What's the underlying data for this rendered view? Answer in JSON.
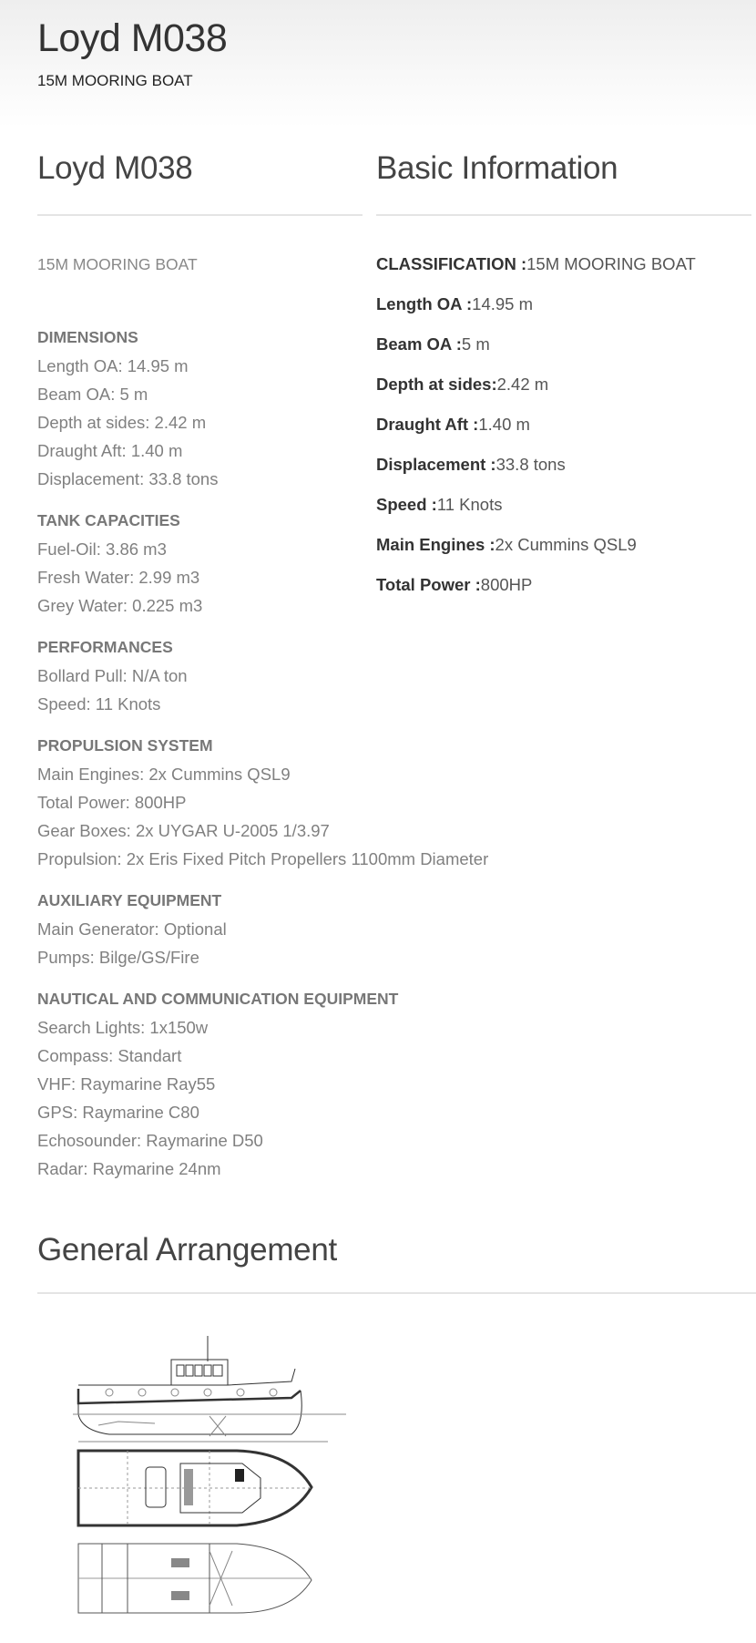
{
  "header": {
    "title": "Loyd M038",
    "subtitle": "15M MOORING BOAT"
  },
  "left": {
    "heading": "Loyd M038",
    "lead": "15M MOORING BOAT",
    "groups": [
      {
        "title": "DIMENSIONS",
        "items": [
          "Length OA: 14.95 m",
          "Beam OA: 5 m",
          "Depth at sides: 2.42 m",
          "Draught Aft: 1.40 m",
          "Displacement: 33.8 tons"
        ]
      },
      {
        "title": "TANK CAPACITIES",
        "items": [
          "Fuel-Oil: 3.86 m3",
          "Fresh Water: 2.99 m3",
          "Grey Water: 0.225 m3"
        ]
      },
      {
        "title": "PERFORMANCES",
        "items": [
          "Bollard Pull: N/A ton",
          "Speed: 11 Knots"
        ]
      },
      {
        "title": "PROPULSION SYSTEM",
        "items": [
          "Main Engines: 2x Cummins QSL9",
          "Total Power: 800HP",
          "Gear Boxes: 2x UYGAR U-2005 1/3.97",
          "Propulsion: 2x Eris Fixed Pitch Propellers 1100mm Diameter"
        ]
      },
      {
        "title": "AUXILIARY EQUIPMENT",
        "items": [
          "Main Generator: Optional",
          "Pumps: Bilge/GS/Fire"
        ]
      },
      {
        "title": "NAUTICAL AND COMMUNICATION EQUIPMENT",
        "items": [
          "Search Lights: 1x150w",
          "Compass: Standart",
          "VHF: Raymarine Ray55",
          "GPS: Raymarine C80",
          "Echosounder: Raymarine D50",
          "Radar: Raymarine 24nm"
        ]
      }
    ]
  },
  "basic": {
    "heading": "Basic Information",
    "items": [
      {
        "label": "CLASSIFICATION :",
        "value": "15M MOORING BOAT"
      },
      {
        "label": "Length OA :",
        "value": "14.95 m"
      },
      {
        "label": "Beam OA :",
        "value": "5 m"
      },
      {
        "label": "Depth at sides:",
        "value": "2.42 m"
      },
      {
        "label": "Draught Aft :",
        "value": "1.40 m"
      },
      {
        "label": "Displacement :",
        "value": "33.8 tons"
      },
      {
        "label": "Speed :",
        "value": "11 Knots"
      },
      {
        "label": "Main Engines :",
        "value": "2x Cummins QSL9"
      },
      {
        "label": "Total Power :",
        "value": "800HP"
      }
    ]
  },
  "arrangement": {
    "heading": "General Arrangement",
    "image": "general-arrangement-drawing"
  }
}
